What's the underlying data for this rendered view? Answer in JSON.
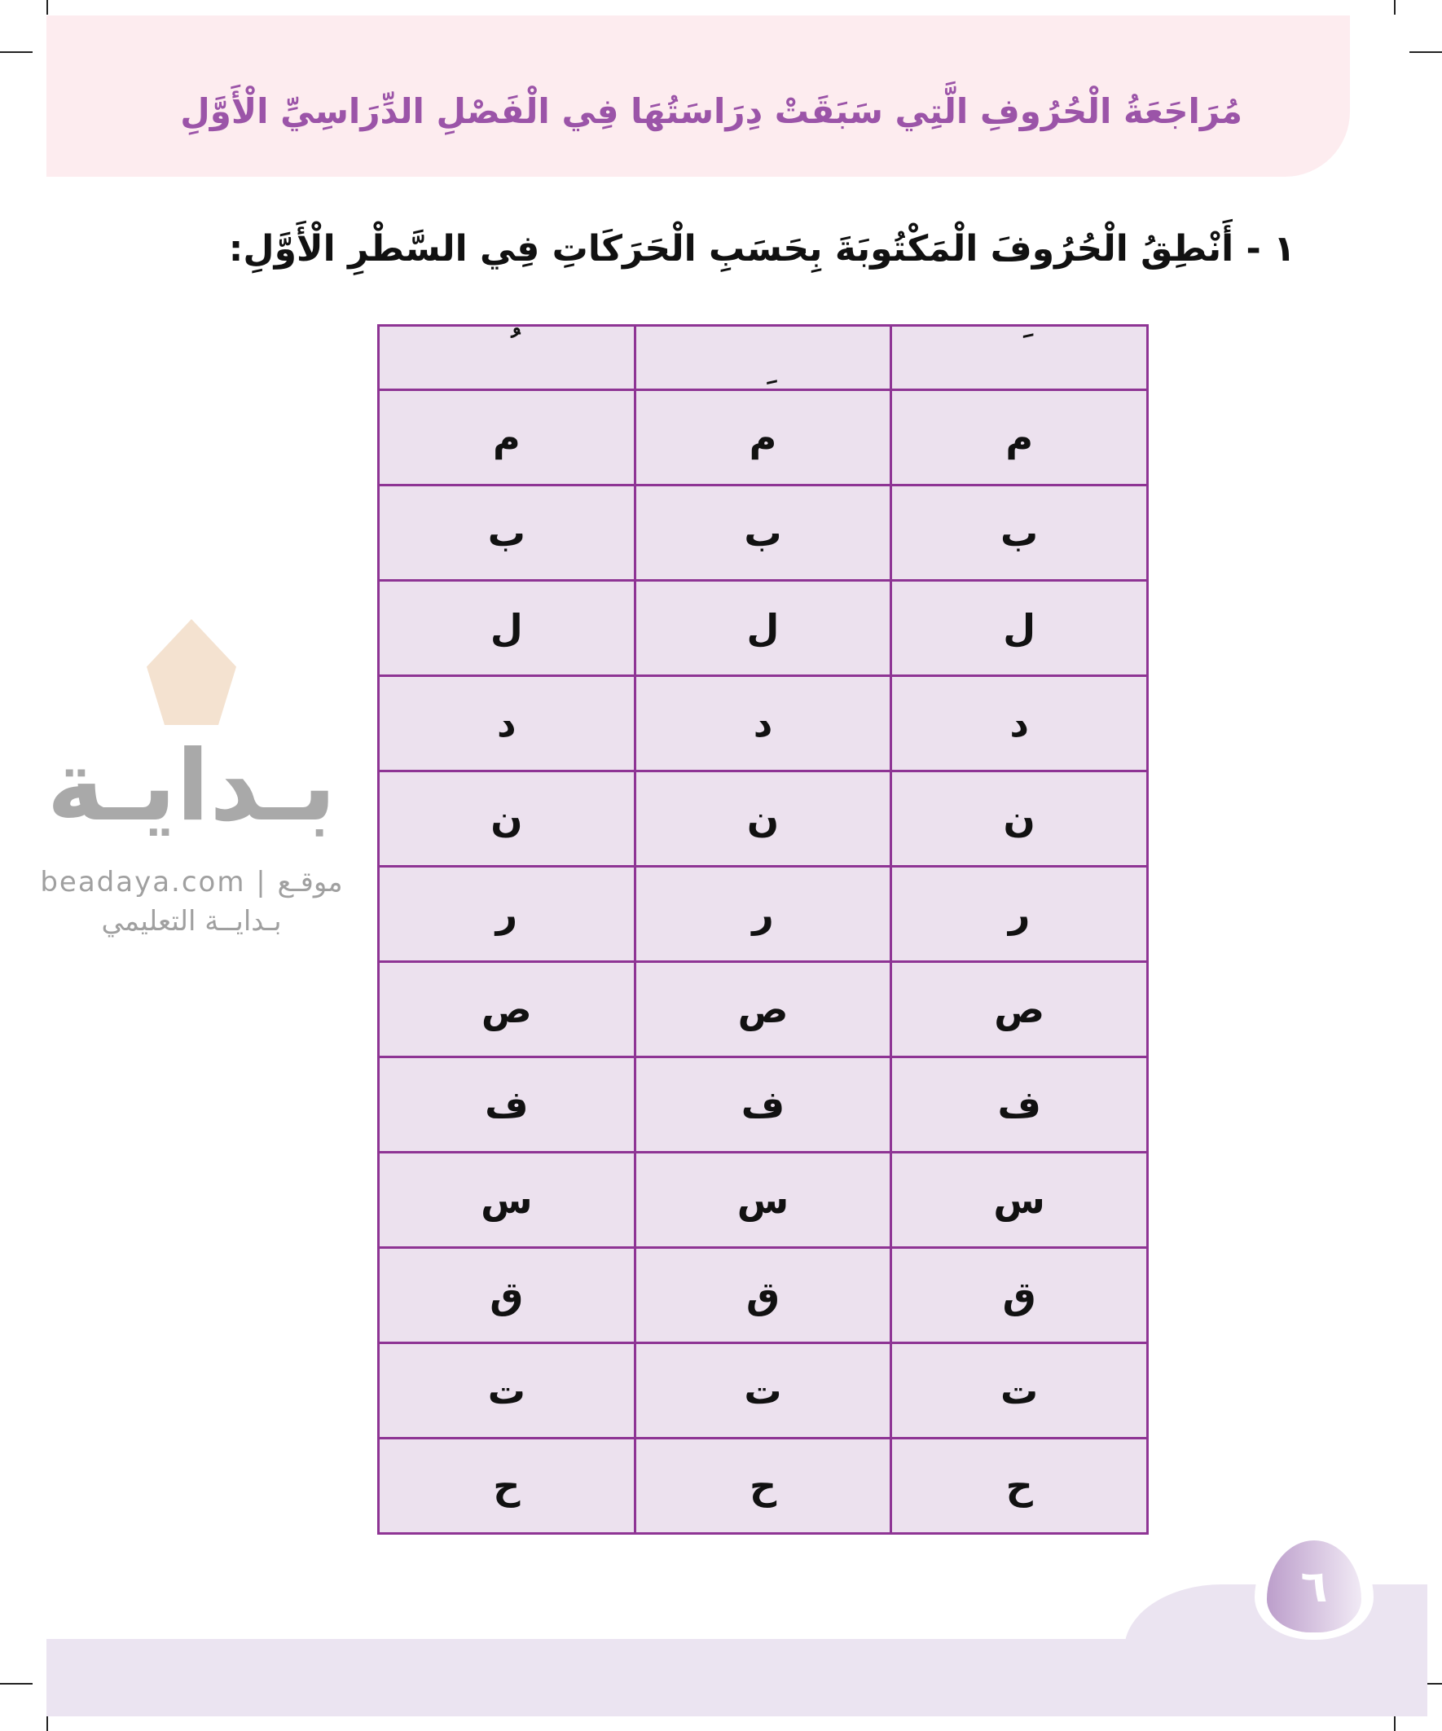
{
  "header": {
    "title": "مُرَاجَعَةُ الْحُرُوفِ الَّتِي سَبَقَتْ دِرَاسَتُهَا فِي الْفَصْلِ الدِّرَاسِيِّ الْأَوَّلِ"
  },
  "exercise": {
    "heading": "١ - أَنْطِقُ الْحُرُوفَ الْمَكْتُوبَةَ بِحَسَبِ الْحَرَكَاتِ فِي السَّطْرِ الْأَوَّلِ:"
  },
  "table": {
    "harakat": [
      "َ",
      "ِ",
      "ُ"
    ],
    "letters": [
      "م",
      "ب",
      "ل",
      "د",
      "ن",
      "ر",
      "ص",
      "ف",
      "س",
      "ق",
      "ت",
      "ح"
    ]
  },
  "watermark": {
    "logo_text": "بـدايـة",
    "subtitle": "beadaya.com | موقـع بـدايــة التعليمي"
  },
  "page_number": "٦",
  "colors": {
    "header_bg": "#fdecef",
    "title": "#9b54a8",
    "table_border": "#8e3494",
    "table_bg": "#ece1ee",
    "footer_bg": "#ebe4f1"
  }
}
